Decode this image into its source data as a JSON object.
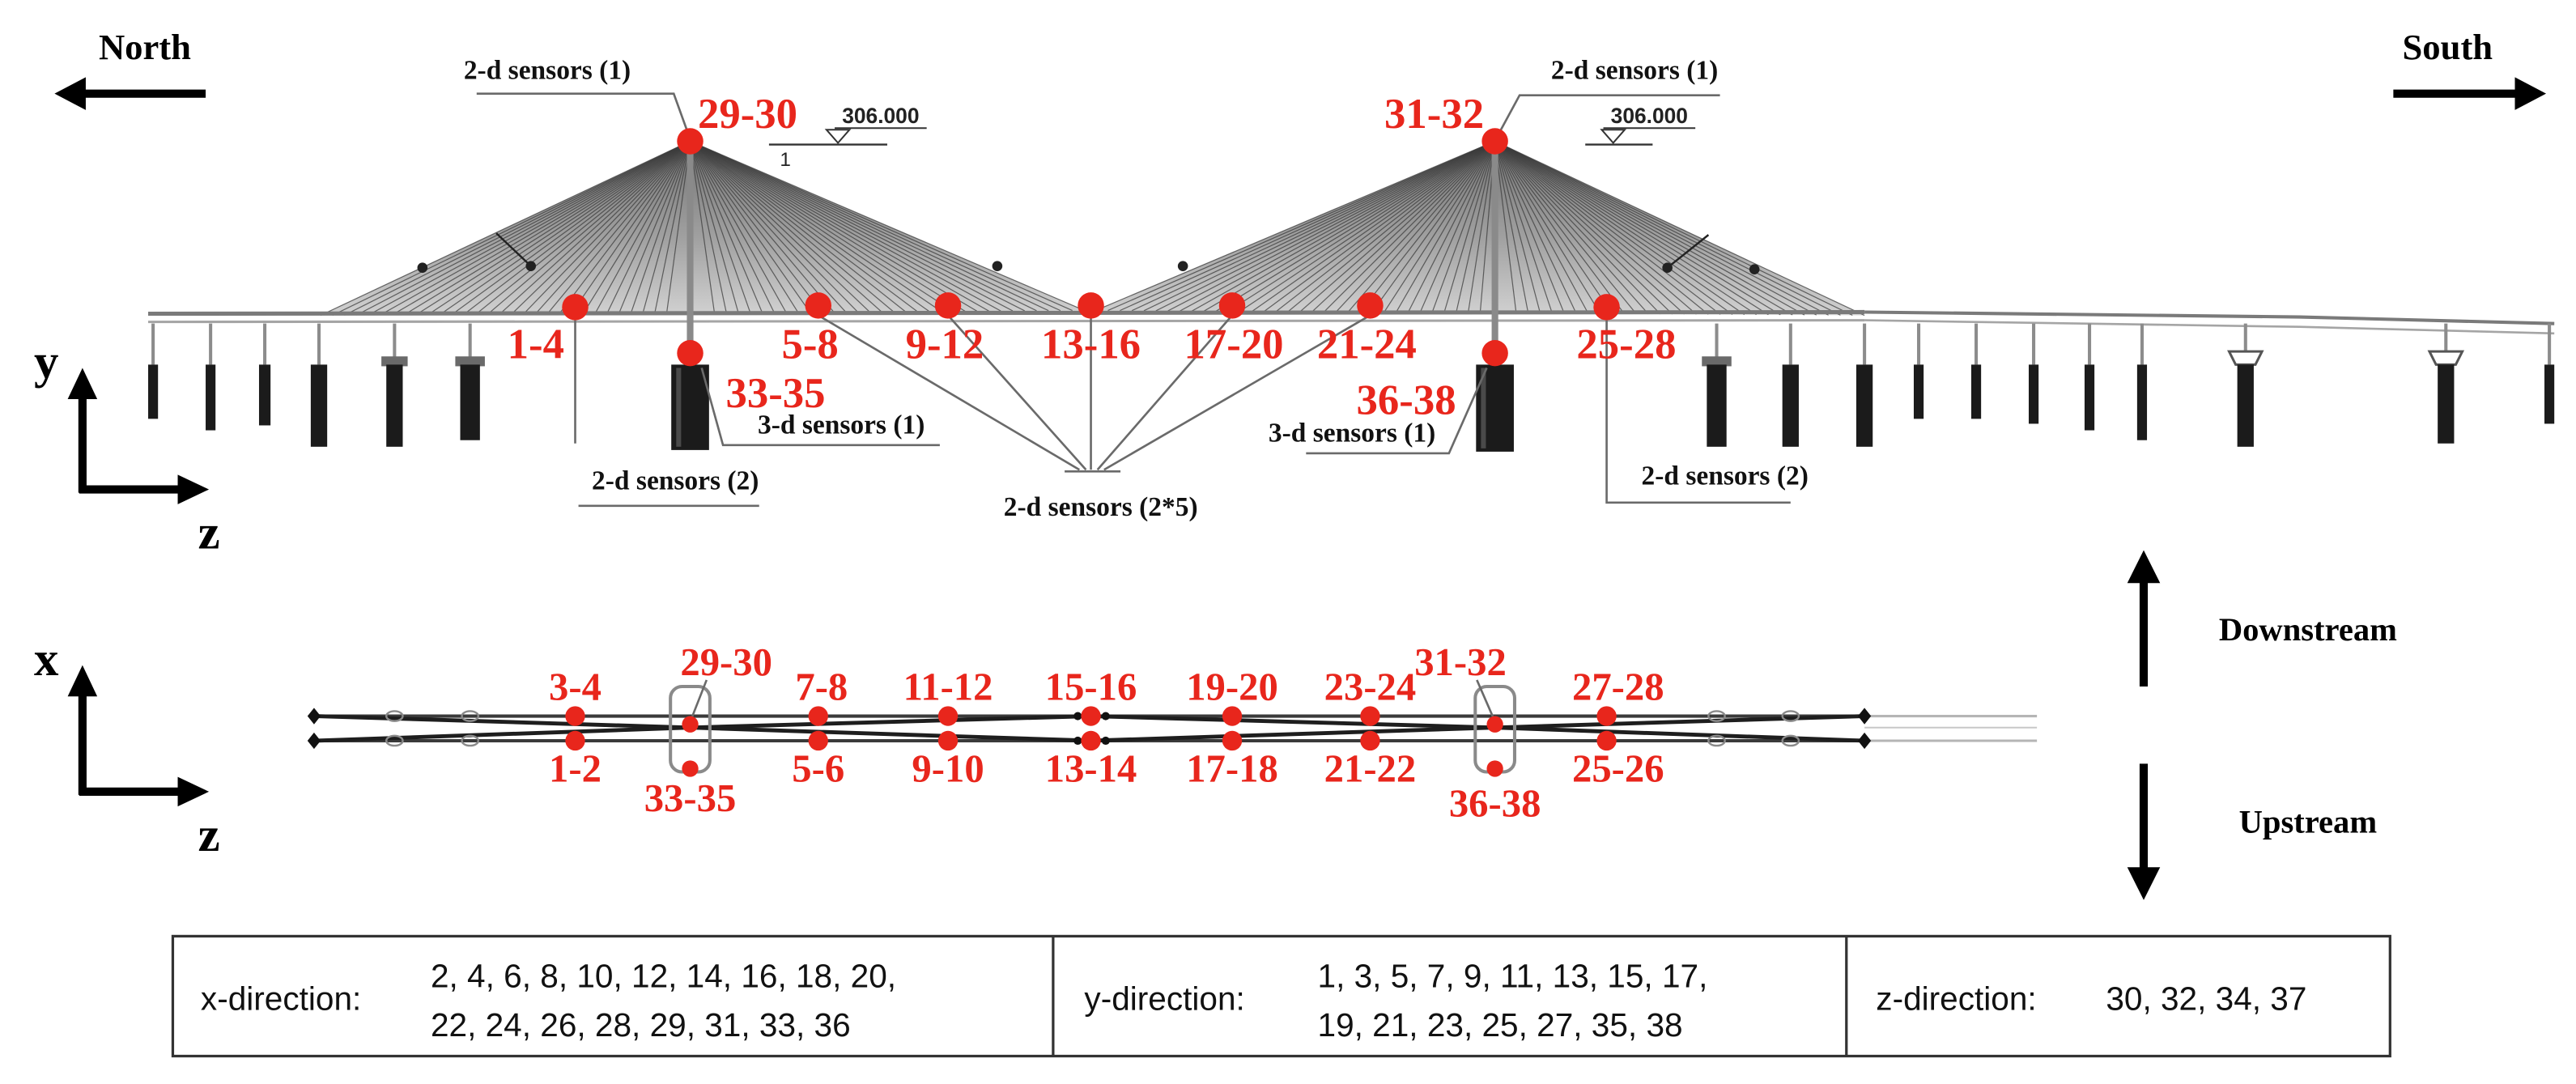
{
  "compass": {
    "north": "North",
    "south": "South"
  },
  "elevation_view": {
    "axes": {
      "vertical": "y",
      "horizontal": "z"
    },
    "tower_top_sensors": {
      "north": "29-30",
      "south": "31-32"
    },
    "pier_sensors": {
      "north": "33-35",
      "south": "36-38"
    },
    "deck_sensors": [
      "1-4",
      "5-8",
      "9-12",
      "13-16",
      "17-20",
      "21-24",
      "25-28"
    ],
    "level_marks": {
      "north_value": "306.000",
      "north_index": "1",
      "south_value": "306.000"
    },
    "annotations": {
      "tower_north": "2-d sensors (1)",
      "tower_south": "2-d sensors (1)",
      "pier_north": "3-d sensors (1)",
      "pier_south": "3-d sensors (1)",
      "deck_north": "2-d sensors (2)",
      "deck_south": "2-d sensors (2)",
      "deck_middle": "2-d sensors (2*5)"
    }
  },
  "plan_view": {
    "axes": {
      "vertical": "x",
      "horizontal": "z"
    },
    "downstream_labels": [
      "3-4",
      "29-30",
      "7-8",
      "11-12",
      "15-16",
      "19-20",
      "23-24",
      "31-32",
      "27-28"
    ],
    "upstream_labels": [
      "1-2",
      "33-35",
      "5-6",
      "9-10",
      "13-14",
      "17-18",
      "21-22",
      "36-38",
      "25-26"
    ]
  },
  "flow": {
    "downstream": "Downstream",
    "upstream": "Upstream"
  },
  "direction_table": [
    {
      "label": "x-direction:",
      "lines": [
        "2, 4, 6, 8, 10, 12, 14, 16, 18, 20,",
        "22, 24, 26, 28, 29, 31, 33, 36"
      ]
    },
    {
      "label": "y-direction:",
      "lines": [
        "1, 3, 5, 7, 9, 11, 13, 15, 17,",
        "19, 21, 23, 25, 27, 35, 38"
      ]
    },
    {
      "label": "z-direction:",
      "lines": [
        "30, 32, 34, 37"
      ]
    }
  ],
  "colors": {
    "sensor": "#e8261c"
  }
}
